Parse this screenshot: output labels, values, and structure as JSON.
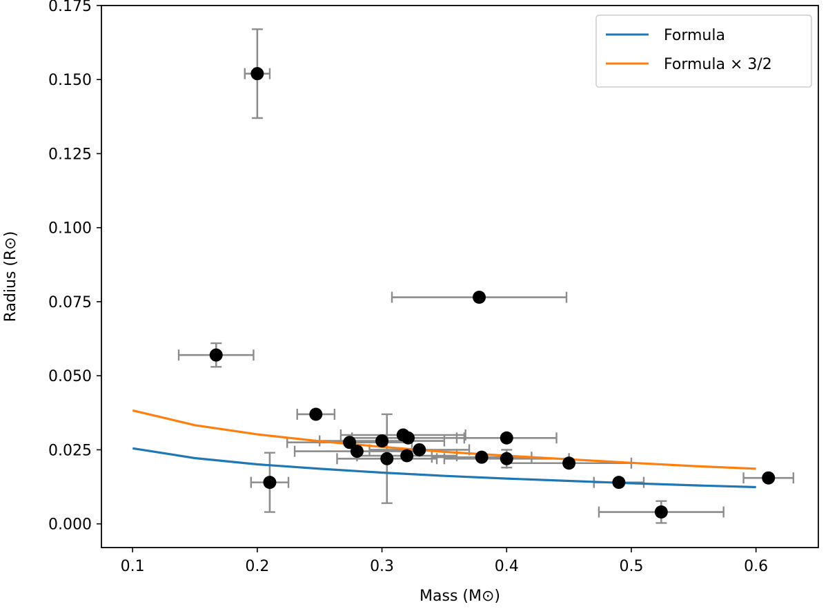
{
  "chart_data": {
    "type": "scatter",
    "title": "",
    "xlabel": "Mass (M⊙)",
    "ylabel": "Radius (R⊙)",
    "xlim": [
      0.075,
      0.65
    ],
    "ylim": [
      -0.008,
      0.175
    ],
    "xticks": [
      0.1,
      0.2,
      0.3,
      0.4,
      0.5,
      0.6
    ],
    "xtick_labels": [
      "0.1",
      "0.2",
      "0.3",
      "0.4",
      "0.5",
      "0.6"
    ],
    "yticks": [
      0.0,
      0.025,
      0.05,
      0.075,
      0.1,
      0.125,
      0.15,
      0.175
    ],
    "ytick_labels": [
      "0.000",
      "0.025",
      "0.050",
      "0.075",
      "0.100",
      "0.125",
      "0.150",
      "0.175"
    ],
    "grid": false,
    "legend_position": "top-right",
    "series": [
      {
        "name": "Formula",
        "kind": "line",
        "color": "#1f77b4",
        "x": [
          0.1,
          0.15,
          0.2,
          0.25,
          0.3,
          0.35,
          0.4,
          0.45,
          0.5,
          0.55,
          0.6
        ],
        "y": [
          0.0255,
          0.0222,
          0.0201,
          0.0186,
          0.0173,
          0.0162,
          0.0153,
          0.0145,
          0.0137,
          0.013,
          0.0124
        ]
      },
      {
        "name": "Formula × 3/2",
        "kind": "line",
        "color": "#ff7f0e",
        "x": [
          0.1,
          0.15,
          0.2,
          0.25,
          0.3,
          0.35,
          0.4,
          0.45,
          0.5,
          0.55,
          0.6
        ],
        "y": [
          0.0383,
          0.0333,
          0.0302,
          0.0279,
          0.026,
          0.0243,
          0.023,
          0.0218,
          0.0206,
          0.0195,
          0.0186
        ]
      },
      {
        "kind": "scatter",
        "color": "#000000",
        "errorbar_color": "#8c8c8c",
        "points": [
          {
            "x": 0.2,
            "y": 0.152,
            "xerr": 0.01,
            "yerr": 0.015
          },
          {
            "x": 0.167,
            "y": 0.057,
            "xerr": 0.03,
            "yerr": 0.004
          },
          {
            "x": 0.378,
            "y": 0.0765,
            "xerr": 0.07,
            "yerr": 0.0
          },
          {
            "x": 0.247,
            "y": 0.037,
            "xerr": 0.015,
            "yerr": 0.0
          },
          {
            "x": 0.21,
            "y": 0.014,
            "xerr": 0.015,
            "yerr": 0.01
          },
          {
            "x": 0.274,
            "y": 0.0275,
            "xerr": 0.05,
            "yerr": 0.0
          },
          {
            "x": 0.28,
            "y": 0.0245,
            "xerr": 0.05,
            "yerr": 0.0
          },
          {
            "x": 0.3,
            "y": 0.028,
            "xerr": 0.05,
            "yerr": 0.0
          },
          {
            "x": 0.304,
            "y": 0.022,
            "xerr": 0.04,
            "yerr": 0.015
          },
          {
            "x": 0.317,
            "y": 0.03,
            "xerr": 0.05,
            "yerr": 0.0
          },
          {
            "x": 0.32,
            "y": 0.023,
            "xerr": 0.04,
            "yerr": 0.0
          },
          {
            "x": 0.321,
            "y": 0.029,
            "xerr": 0.045,
            "yerr": 0.0
          },
          {
            "x": 0.33,
            "y": 0.025,
            "xerr": 0.04,
            "yerr": 0.0
          },
          {
            "x": 0.38,
            "y": 0.0225,
            "xerr": 0.04,
            "yerr": 0.0
          },
          {
            "x": 0.4,
            "y": 0.029,
            "xerr": 0.04,
            "yerr": 0.0
          },
          {
            "x": 0.4,
            "y": 0.022,
            "xerr": 0.05,
            "yerr": 0.003
          },
          {
            "x": 0.45,
            "y": 0.0205,
            "xerr": 0.05,
            "yerr": 0.0
          },
          {
            "x": 0.49,
            "y": 0.014,
            "xerr": 0.02,
            "yerr": 0.0
          },
          {
            "x": 0.524,
            "y": 0.004,
            "xerr": 0.05,
            "yerr": 0.0037
          },
          {
            "x": 0.61,
            "y": 0.0155,
            "xerr": 0.02,
            "yerr": 0.0
          }
        ]
      }
    ]
  }
}
